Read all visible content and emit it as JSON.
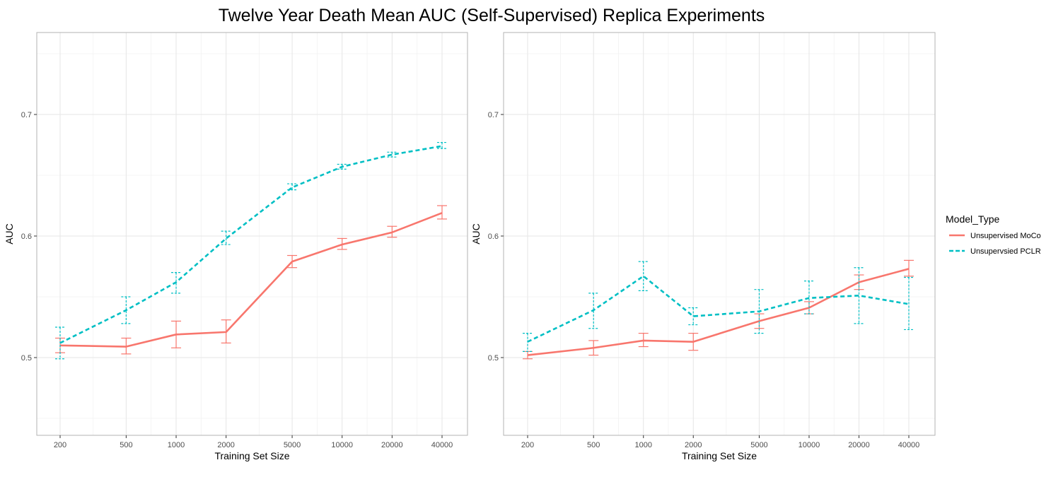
{
  "chart_data": {
    "type": "line",
    "title": "Twelve Year Death Mean AUC (Self-Supervised) Replica Experiments",
    "x_categories": [
      "200",
      "500",
      "1000",
      "2000",
      "5000",
      "10000",
      "20000",
      "40000"
    ],
    "y_ticks": [
      "0.5",
      "0.6",
      "0.7"
    ],
    "y_range": [
      0.44,
      0.76
    ],
    "legend": {
      "title": "Model_Type",
      "position": "right",
      "entries": [
        "Unsupervised MoCo",
        "Unsupervsied PCLR"
      ]
    },
    "colors": {
      "moco": "#F8766D",
      "pclr": "#00BFC4"
    },
    "panels": [
      {
        "name": "left",
        "xlabel": "Training Set Size",
        "ylabel": "AUC",
        "series": [
          {
            "name": "Unsupervised MoCo",
            "style": "solid",
            "values": [
              0.51,
              0.509,
              0.519,
              0.521,
              0.579,
              0.593,
              0.603,
              0.619
            ],
            "lower": [
              0.504,
              0.503,
              0.508,
              0.512,
              0.574,
              0.589,
              0.599,
              0.614
            ],
            "upper": [
              0.516,
              0.516,
              0.53,
              0.531,
              0.584,
              0.598,
              0.608,
              0.625
            ]
          },
          {
            "name": "Unsupervsied PCLR",
            "style": "dashed",
            "values": [
              0.512,
              0.539,
              0.562,
              0.598,
              0.64,
              0.657,
              0.667,
              0.674
            ],
            "lower": [
              0.499,
              0.528,
              0.553,
              0.593,
              0.638,
              0.655,
              0.665,
              0.672
            ],
            "upper": [
              0.525,
              0.55,
              0.57,
              0.604,
              0.643,
              0.659,
              0.669,
              0.677
            ]
          }
        ]
      },
      {
        "name": "right",
        "xlabel": "Training Set Size",
        "ylabel": "AUC",
        "series": [
          {
            "name": "Unsupervised MoCo",
            "style": "solid",
            "values": [
              0.502,
              0.508,
              0.514,
              0.513,
              0.53,
              0.541,
              0.562,
              0.573
            ],
            "lower": [
              0.499,
              0.502,
              0.509,
              0.506,
              0.524,
              0.536,
              0.556,
              0.567
            ],
            "upper": [
              0.505,
              0.514,
              0.52,
              0.52,
              0.536,
              0.546,
              0.568,
              0.58
            ]
          },
          {
            "name": "Unsupervsied PCLR",
            "style": "dashed",
            "values": [
              0.513,
              0.539,
              0.567,
              0.534,
              0.538,
              0.549,
              0.551,
              0.544
            ],
            "lower": [
              0.505,
              0.524,
              0.555,
              0.527,
              0.52,
              0.536,
              0.528,
              0.523
            ],
            "upper": [
              0.52,
              0.553,
              0.579,
              0.541,
              0.556,
              0.563,
              0.574,
              0.566
            ]
          }
        ]
      }
    ]
  }
}
